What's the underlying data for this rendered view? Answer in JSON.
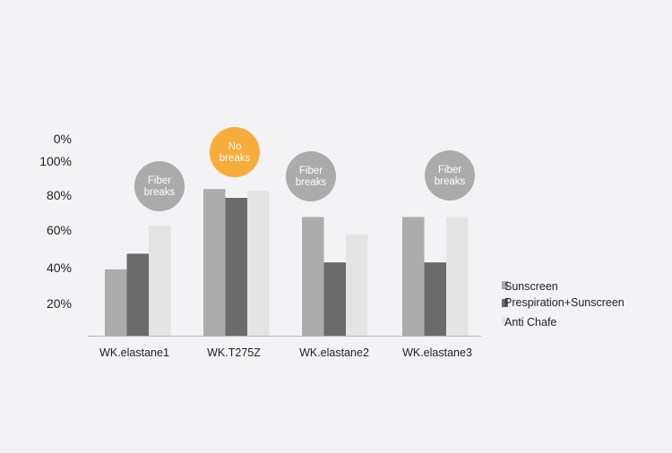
{
  "chart_data": {
    "type": "bar",
    "categories": [
      "WK.elastane1",
      "WK.T275Z",
      "WK.elastane2",
      "WK.elastane3"
    ],
    "series": [
      {
        "name": "Sunscreen",
        "color": "#acacac",
        "values": [
          38,
          84,
          68,
          68
        ]
      },
      {
        "name": "Prespiration+Sunscreen",
        "color": "#6b6b6b",
        "values": [
          47,
          79,
          42,
          42
        ]
      },
      {
        "name": "Anti Chafe",
        "color": "#e4e4e4",
        "values": [
          63,
          83,
          58,
          68
        ]
      }
    ],
    "y_tick_labels": [
      "0%",
      "100%",
      "80%",
      "60%",
      "40%",
      "20%"
    ],
    "ylim": [
      0,
      100
    ],
    "grid": false,
    "legend_position": "right",
    "annotations": [
      {
        "category": "WK.elastane1",
        "lines": [
          "Fiber",
          "breaks"
        ],
        "color": "#ababab"
      },
      {
        "category": "WK.T275Z",
        "lines": [
          "No",
          "breaks"
        ],
        "color": "#f6ad3b"
      },
      {
        "category": "WK.elastane2",
        "lines": [
          "Fiber",
          "breaks"
        ],
        "color": "#ababab"
      },
      {
        "category": "WK.elastane3",
        "lines": [
          "Fiber",
          "breaks"
        ],
        "color": "#ababab"
      }
    ]
  }
}
